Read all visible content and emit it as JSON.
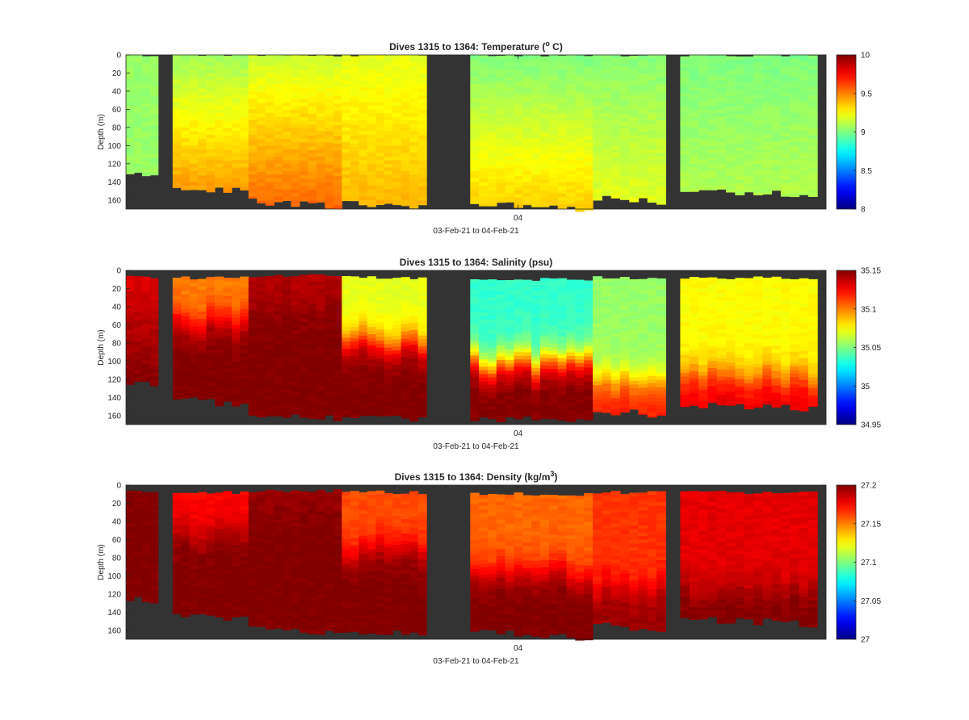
{
  "chart_data": [
    {
      "type": "heatmap",
      "title_parts": [
        "Dives 1315 to 1364: Temperature (",
        "o",
        " C)"
      ],
      "ylabel": "Depth (m)",
      "xlabel": "03-Feb-21 to 04-Feb-21",
      "x_tick_labels": [
        "04"
      ],
      "y_tick_labels": [
        "0",
        "20",
        "40",
        "60",
        "80",
        "100",
        "120",
        "140",
        "160"
      ],
      "ylim": [
        0,
        170
      ],
      "clim": [
        8,
        10
      ],
      "colorbar_ticks": [
        8,
        8.5,
        9,
        9.5,
        10
      ],
      "colorbar_tick_labels": [
        "8",
        "8.5",
        "9",
        "9.5",
        "10"
      ],
      "colormap": "jet",
      "no_data_color": "#333333",
      "dives": [
        {
          "x": [
            0.0,
            0.11
          ],
          "top": 0,
          "bottom": 132,
          "surface": 9.05,
          "deep": 9.05
        },
        {
          "x": [
            0.16,
            0.42
          ],
          "top": 0,
          "bottom": 148,
          "surface": 9.07,
          "deep": 9.45
        },
        {
          "x": [
            0.42,
            0.74
          ],
          "top": 0,
          "bottom": 164,
          "surface": 9.15,
          "deep": 9.55
        },
        {
          "x": [
            0.74,
            1.03
          ],
          "top": 0,
          "bottom": 166,
          "surface": 9.2,
          "deep": 9.4
        },
        {
          "x": [
            1.18,
            1.6
          ],
          "top": 0,
          "bottom": 167,
          "surface": 9.0,
          "deep": 9.35
        },
        {
          "x": [
            1.6,
            1.85
          ],
          "top": 0,
          "bottom": 160,
          "surface": 9.02,
          "deep": 9.2
        },
        {
          "x": [
            1.9,
            2.37
          ],
          "top": 0,
          "bottom": 152,
          "surface": 9.0,
          "deep": 9.1
        }
      ]
    },
    {
      "type": "heatmap",
      "title_parts": [
        "Dives 1315 to 1364: Salinity (psu)"
      ],
      "ylabel": "Depth (m)",
      "xlabel": "03-Feb-21 to 04-Feb-21",
      "x_tick_labels": [
        "04"
      ],
      "y_tick_labels": [
        "0",
        "20",
        "40",
        "60",
        "80",
        "100",
        "120",
        "140",
        "160"
      ],
      "ylim": [
        0,
        170
      ],
      "clim": [
        34.95,
        35.15
      ],
      "colorbar_ticks": [
        34.95,
        35,
        35.05,
        35.1,
        35.15
      ],
      "colorbar_tick_labels": [
        "34.95",
        "35",
        "35.05",
        "35.1",
        "35.15"
      ],
      "colormap": "jet",
      "no_data_color": "#333333",
      "dives": [
        {
          "x": [
            0.0,
            0.11
          ],
          "top": 8,
          "bottom": 126,
          "surface": 35.13,
          "deep": 35.15
        },
        {
          "x": [
            0.16,
            0.42
          ],
          "top": 8,
          "bottom": 145,
          "surface": 35.1,
          "deep": 35.15,
          "transition": 55
        },
        {
          "x": [
            0.42,
            0.74
          ],
          "top": 6,
          "bottom": 160,
          "surface": 35.14,
          "deep": 35.15,
          "transition": 40
        },
        {
          "x": [
            0.74,
            1.03
          ],
          "top": 8,
          "bottom": 162,
          "surface": 35.07,
          "deep": 35.15,
          "transition": 75
        },
        {
          "x": [
            1.18,
            1.6
          ],
          "top": 10,
          "bottom": 165,
          "surface": 35.035,
          "deep": 35.15,
          "transition": 100
        },
        {
          "x": [
            1.6,
            1.85
          ],
          "top": 8,
          "bottom": 157,
          "surface": 35.055,
          "deep": 35.12,
          "transition": 120
        },
        {
          "x": [
            1.9,
            2.37
          ],
          "top": 8,
          "bottom": 150,
          "surface": 35.075,
          "deep": 35.13,
          "transition": 115
        }
      ]
    },
    {
      "type": "heatmap",
      "title_parts": [
        "Dives 1315 to 1364: Density (kg/m",
        "3",
        ")"
      ],
      "ylabel": "Depth (m)",
      "xlabel": "03-Feb-21 to 04-Feb-21",
      "x_tick_labels": [
        "04"
      ],
      "y_tick_labels": [
        "0",
        "20",
        "40",
        "60",
        "80",
        "100",
        "120",
        "140",
        "160"
      ],
      "ylim": [
        0,
        170
      ],
      "clim": [
        27,
        27.2
      ],
      "colorbar_ticks": [
        27,
        27.05,
        27.1,
        27.15,
        27.2
      ],
      "colorbar_tick_labels": [
        "27",
        "27.05",
        "27.1",
        "27.15",
        "27.2"
      ],
      "colormap": "jet",
      "no_data_color": "#333333",
      "dives": [
        {
          "x": [
            0.0,
            0.11
          ],
          "top": 8,
          "bottom": 127,
          "surface": 27.2,
          "deep": 27.2
        },
        {
          "x": [
            0.16,
            0.42
          ],
          "top": 8,
          "bottom": 145,
          "surface": 27.175,
          "deep": 27.2,
          "transition": 50
        },
        {
          "x": [
            0.42,
            0.74
          ],
          "top": 6,
          "bottom": 160,
          "surface": 27.195,
          "deep": 27.2,
          "transition": 30
        },
        {
          "x": [
            0.74,
            1.03
          ],
          "top": 8,
          "bottom": 162,
          "surface": 27.16,
          "deep": 27.2,
          "transition": 70
        },
        {
          "x": [
            1.18,
            1.6
          ],
          "top": 10,
          "bottom": 165,
          "surface": 27.155,
          "deep": 27.2,
          "transition": 95
        },
        {
          "x": [
            1.6,
            1.85
          ],
          "top": 8,
          "bottom": 157,
          "surface": 27.165,
          "deep": 27.195,
          "transition": 110
        },
        {
          "x": [
            1.9,
            2.37
          ],
          "top": 8,
          "bottom": 150,
          "surface": 27.18,
          "deep": 27.2,
          "transition": 110
        }
      ]
    }
  ]
}
